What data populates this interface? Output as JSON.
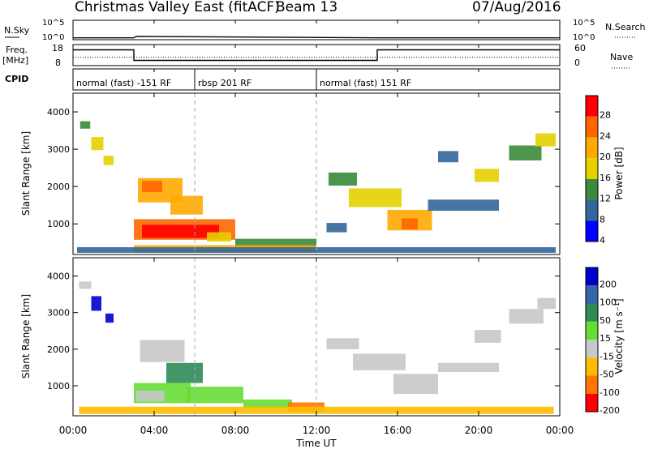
{
  "header": {
    "title": "Christmas Valley East (fitACF)",
    "beam": "Beam 13",
    "date": "07/Aug/2016"
  },
  "colors": {
    "axis": "#000000",
    "dashed_marker": "#aaaaaa"
  },
  "chart_data": [
    {
      "type": "line",
      "panel": "noise",
      "left_label": "N.Sky",
      "right_label": "N.Search",
      "right_label_style": "dotted",
      "yticks_left": [
        "10^5",
        "10^0"
      ],
      "yticks_right": [
        "10^5",
        "10^0"
      ],
      "y_scale": "log",
      "ylim": [
        1,
        100000
      ],
      "series": [
        {
          "style": "solid",
          "x": [
            0,
            3.0,
            3.1,
            15.0,
            24
          ],
          "y": [
            3,
            3,
            7,
            3,
            3
          ]
        }
      ]
    },
    {
      "type": "line",
      "panel": "frequency",
      "left_label": "Freq.",
      "left_unit": "[MHz]",
      "right_label": "Nave",
      "right_label_style": "dotted",
      "yticks_left": [
        "18",
        "8"
      ],
      "yticks_right": [
        "60",
        "0"
      ],
      "ylim": [
        8,
        18
      ],
      "series": [
        {
          "style": "solid",
          "x": [
            0,
            3.0,
            3.0,
            15.0,
            15.0,
            24
          ],
          "y": [
            15.5,
            15.5,
            10.5,
            10.5,
            15.5,
            15.5
          ]
        },
        {
          "style": "dotted",
          "x": [
            0,
            24
          ],
          "y": [
            12,
            12
          ]
        }
      ]
    },
    {
      "type": "table",
      "panel": "cpid",
      "label": "CPID",
      "segments": [
        {
          "start": 0,
          "end": 6.0,
          "text": "normal (fast) -151 RF"
        },
        {
          "start": 6.0,
          "end": 12.0,
          "text": "rbsp 201 RF"
        },
        {
          "start": 12.0,
          "end": 24,
          "text": "normal (fast) 151 RF"
        }
      ]
    },
    {
      "type": "heatmap",
      "panel": "power",
      "ylabel": "Slant Range [km]",
      "ylim": [
        180,
        4500
      ],
      "yticks": [
        1000,
        2000,
        3000,
        4000
      ],
      "xlim": [
        0,
        24
      ],
      "colorbar": {
        "label": "Power [dB]",
        "ticks": [
          "28",
          "24",
          "20",
          "16",
          "12",
          "8",
          "4"
        ],
        "colors": [
          "#ff0000",
          "#ff6600",
          "#ffaa00",
          "#e6d000",
          "#3a8a3a",
          "#336699",
          "#0000ff"
        ]
      },
      "blobs": [
        {
          "x": 0.9,
          "y": 3150,
          "w": 0.6,
          "h": 350,
          "c": 3
        },
        {
          "x": 0.35,
          "y": 3650,
          "w": 0.5,
          "h": 200,
          "c": 4
        },
        {
          "x": 1.5,
          "y": 2700,
          "w": 0.5,
          "h": 250,
          "c": 3
        },
        {
          "x": 3.2,
          "y": 1900,
          "w": 2.2,
          "h": 650,
          "c": 2
        },
        {
          "x": 3.4,
          "y": 2000,
          "w": 1.0,
          "h": 300,
          "c": 1
        },
        {
          "x": 4.8,
          "y": 1500,
          "w": 1.6,
          "h": 500,
          "c": 2
        },
        {
          "x": 3.0,
          "y": 850,
          "w": 5.0,
          "h": 550,
          "c": 1
        },
        {
          "x": 3.4,
          "y": 800,
          "w": 3.8,
          "h": 350,
          "c": 0
        },
        {
          "x": 6.6,
          "y": 650,
          "w": 1.2,
          "h": 250,
          "c": 3
        },
        {
          "x": 8.0,
          "y": 450,
          "w": 4.0,
          "h": 300,
          "c": 4
        },
        {
          "x": 3.0,
          "y": 330,
          "w": 9.0,
          "h": 200,
          "c": 2
        },
        {
          "x": 0.2,
          "y": 300,
          "w": 23.6,
          "h": 150,
          "c": 5
        },
        {
          "x": 12.6,
          "y": 2200,
          "w": 1.4,
          "h": 350,
          "c": 4
        },
        {
          "x": 13.6,
          "y": 1700,
          "w": 2.6,
          "h": 500,
          "c": 3
        },
        {
          "x": 15.5,
          "y": 1100,
          "w": 2.2,
          "h": 550,
          "c": 2
        },
        {
          "x": 16.2,
          "y": 1000,
          "w": 0.8,
          "h": 300,
          "c": 1
        },
        {
          "x": 19.8,
          "y": 2300,
          "w": 1.2,
          "h": 350,
          "c": 3
        },
        {
          "x": 21.5,
          "y": 2900,
          "w": 1.6,
          "h": 400,
          "c": 4
        },
        {
          "x": 22.8,
          "y": 3250,
          "w": 1.0,
          "h": 350,
          "c": 3
        },
        {
          "x": 17.5,
          "y": 1500,
          "w": 3.5,
          "h": 300,
          "c": 5
        },
        {
          "x": 18.0,
          "y": 2800,
          "w": 1.0,
          "h": 300,
          "c": 5
        },
        {
          "x": 12.5,
          "y": 900,
          "w": 1.0,
          "h": 250,
          "c": 5
        }
      ]
    },
    {
      "type": "heatmap",
      "panel": "velocity",
      "ylabel": "Slant Range [km]",
      "ylim": [
        180,
        4500
      ],
      "yticks": [
        1000,
        2000,
        3000,
        4000
      ],
      "xlim": [
        0,
        24
      ],
      "xticks": [
        "00:00",
        "04:00",
        "08:00",
        "12:00",
        "16:00",
        "20:00",
        "00:00"
      ],
      "xlabel": "Time UT",
      "colorbar": {
        "label": "Velocity [m s⁻¹]",
        "ticks": [
          "200",
          "100",
          "50",
          "15",
          "-15",
          "-50",
          "-100",
          "-200"
        ],
        "colors": [
          "#0000cc",
          "#3366aa",
          "#2e8b57",
          "#66dd33",
          "#c8c8c8",
          "#ffbb00",
          "#ff7700",
          "#ff0000"
        ]
      },
      "blobs": [
        {
          "x": 0.9,
          "y": 3250,
          "w": 0.5,
          "h": 400,
          "c": 0
        },
        {
          "x": 1.6,
          "y": 2850,
          "w": 0.4,
          "h": 250,
          "c": 0
        },
        {
          "x": 0.3,
          "y": 3750,
          "w": 0.6,
          "h": 200,
          "c": 4
        },
        {
          "x": 3.3,
          "y": 1950,
          "w": 2.2,
          "h": 600,
          "c": 4
        },
        {
          "x": 4.6,
          "y": 1350,
          "w": 1.8,
          "h": 550,
          "c": 2
        },
        {
          "x": 3.0,
          "y": 800,
          "w": 2.8,
          "h": 550,
          "c": 3
        },
        {
          "x": 5.6,
          "y": 750,
          "w": 2.8,
          "h": 450,
          "c": 3
        },
        {
          "x": 3.1,
          "y": 720,
          "w": 1.4,
          "h": 300,
          "c": 4
        },
        {
          "x": 8.4,
          "y": 500,
          "w": 2.4,
          "h": 250,
          "c": 3
        },
        {
          "x": 10.6,
          "y": 420,
          "w": 1.8,
          "h": 250,
          "c": 6
        },
        {
          "x": 0.3,
          "y": 330,
          "w": 23.4,
          "h": 200,
          "c": 5
        },
        {
          "x": 12.5,
          "y": 2150,
          "w": 1.6,
          "h": 300,
          "c": 4
        },
        {
          "x": 13.8,
          "y": 1650,
          "w": 2.6,
          "h": 450,
          "c": 4
        },
        {
          "x": 15.8,
          "y": 1050,
          "w": 2.2,
          "h": 550,
          "c": 4
        },
        {
          "x": 19.8,
          "y": 2350,
          "w": 1.3,
          "h": 350,
          "c": 4
        },
        {
          "x": 21.5,
          "y": 2900,
          "w": 1.7,
          "h": 400,
          "c": 4
        },
        {
          "x": 22.9,
          "y": 3250,
          "w": 0.9,
          "h": 300,
          "c": 4
        },
        {
          "x": 18.0,
          "y": 1500,
          "w": 3.0,
          "h": 250,
          "c": 4
        }
      ]
    }
  ]
}
